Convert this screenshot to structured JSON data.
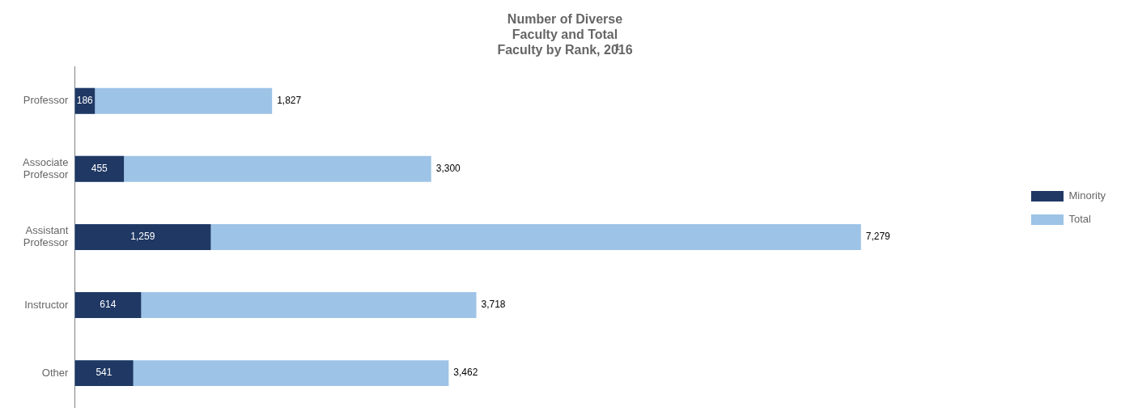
{
  "chart_data": {
    "type": "bar",
    "orientation": "horizontal",
    "title": [
      "Number of Diverse",
      "Faculty and Total",
      "Faculty by Rank, 2016"
    ],
    "title_superscript": "1",
    "categories": [
      "Professor",
      "Associate\nProfessor",
      "Assistant\nProfessor",
      "Instructor",
      "Other"
    ],
    "series": [
      {
        "name": "Minority",
        "color": "#1F3864",
        "values": [
          186,
          455,
          1259,
          614,
          541
        ],
        "value_labels": [
          "186",
          "455",
          "1,259",
          "614",
          "541"
        ]
      },
      {
        "name": "Total",
        "color": "#9DC3E6",
        "values": [
          1827,
          3300,
          7279,
          3718,
          3462
        ],
        "value_labels": [
          "1,827",
          "3,300",
          "7,279",
          "3,718",
          "3,462"
        ]
      }
    ],
    "xlim": [
      0,
      8734.8
    ],
    "stacked": false,
    "data_labels": true,
    "tick_labels": "y",
    "grid": false,
    "legend": "right"
  }
}
